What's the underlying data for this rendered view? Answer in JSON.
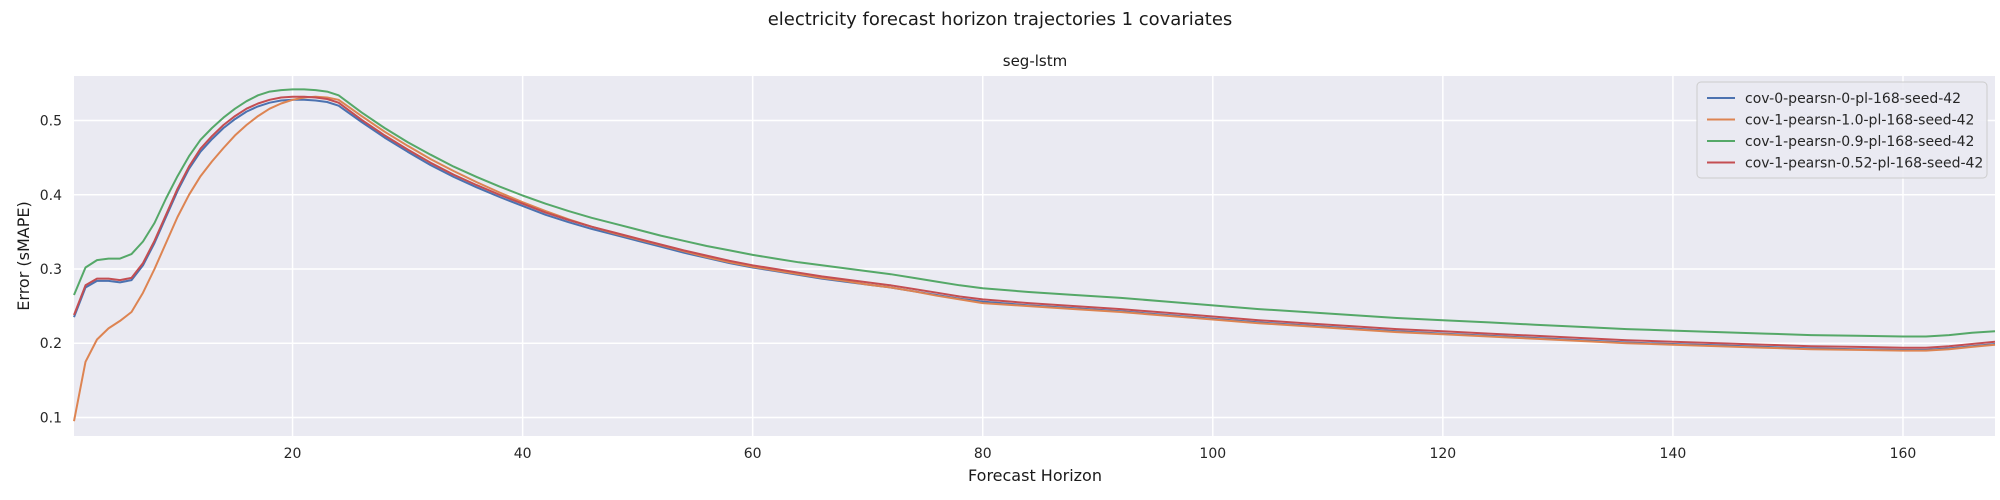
{
  "chart_data": {
    "type": "line",
    "suptitle": "electricity forecast horizon trajectories 1 covariates",
    "title": "seg-lstm",
    "xlabel": "Forecast Horizon",
    "ylabel": "Error (sMAPE)",
    "xlim": [
      1,
      168
    ],
    "ylim": [
      0.075,
      0.56
    ],
    "xticks": [
      20,
      40,
      60,
      80,
      100,
      120,
      140,
      160
    ],
    "yticks": [
      0.1,
      0.2,
      0.3,
      0.4,
      0.5
    ],
    "grid": true,
    "legend_position": "top-right",
    "x": [
      1,
      2,
      3,
      4,
      5,
      6,
      7,
      8,
      9,
      10,
      11,
      12,
      13,
      14,
      15,
      16,
      17,
      18,
      19,
      20,
      21,
      22,
      23,
      24,
      26,
      28,
      30,
      32,
      34,
      36,
      38,
      40,
      42,
      44,
      46,
      48,
      50,
      52,
      54,
      56,
      58,
      60,
      62,
      64,
      66,
      68,
      70,
      72,
      74,
      76,
      78,
      80,
      84,
      88,
      92,
      96,
      100,
      104,
      108,
      112,
      116,
      120,
      124,
      128,
      132,
      136,
      140,
      144,
      148,
      152,
      156,
      160,
      162,
      164,
      166,
      168
    ],
    "series": [
      {
        "name": "cov-0-pearsn-0-pl-168-seed-42",
        "color": "#4c72b0",
        "values": [
          0.235,
          0.275,
          0.284,
          0.284,
          0.282,
          0.285,
          0.305,
          0.335,
          0.37,
          0.405,
          0.435,
          0.458,
          0.475,
          0.49,
          0.502,
          0.512,
          0.519,
          0.524,
          0.527,
          0.528,
          0.528,
          0.527,
          0.525,
          0.52,
          0.498,
          0.477,
          0.458,
          0.44,
          0.424,
          0.41,
          0.397,
          0.385,
          0.373,
          0.363,
          0.354,
          0.346,
          0.338,
          0.33,
          0.322,
          0.315,
          0.308,
          0.302,
          0.297,
          0.292,
          0.287,
          0.283,
          0.279,
          0.275,
          0.27,
          0.265,
          0.26,
          0.256,
          0.251,
          0.247,
          0.243,
          0.238,
          0.233,
          0.228,
          0.224,
          0.22,
          0.216,
          0.213,
          0.21,
          0.207,
          0.204,
          0.201,
          0.199,
          0.197,
          0.195,
          0.193,
          0.192,
          0.191,
          0.191,
          0.193,
          0.196,
          0.199
        ]
      },
      {
        "name": "cov-1-pearsn-1.0-pl-168-seed-42",
        "color": "#dd8452",
        "values": [
          0.095,
          0.175,
          0.205,
          0.22,
          0.23,
          0.242,
          0.268,
          0.3,
          0.335,
          0.37,
          0.4,
          0.425,
          0.445,
          0.463,
          0.48,
          0.494,
          0.506,
          0.516,
          0.523,
          0.528,
          0.531,
          0.532,
          0.531,
          0.528,
          0.506,
          0.485,
          0.466,
          0.448,
          0.432,
          0.417,
          0.403,
          0.39,
          0.378,
          0.367,
          0.357,
          0.348,
          0.34,
          0.332,
          0.324,
          0.316,
          0.309,
          0.303,
          0.298,
          0.293,
          0.288,
          0.284,
          0.279,
          0.275,
          0.27,
          0.264,
          0.259,
          0.254,
          0.25,
          0.246,
          0.242,
          0.237,
          0.232,
          0.227,
          0.223,
          0.219,
          0.215,
          0.212,
          0.209,
          0.206,
          0.203,
          0.2,
          0.198,
          0.196,
          0.194,
          0.192,
          0.191,
          0.19,
          0.19,
          0.192,
          0.195,
          0.198
        ]
      },
      {
        "name": "cov-1-pearsn-0.9-pl-168-seed-42",
        "color": "#55a868",
        "values": [
          0.265,
          0.302,
          0.312,
          0.314,
          0.314,
          0.32,
          0.337,
          0.362,
          0.395,
          0.425,
          0.452,
          0.474,
          0.49,
          0.504,
          0.516,
          0.526,
          0.534,
          0.539,
          0.541,
          0.542,
          0.542,
          0.541,
          0.539,
          0.534,
          0.511,
          0.49,
          0.471,
          0.454,
          0.438,
          0.424,
          0.411,
          0.399,
          0.388,
          0.378,
          0.369,
          0.361,
          0.353,
          0.345,
          0.338,
          0.331,
          0.325,
          0.319,
          0.314,
          0.309,
          0.305,
          0.301,
          0.297,
          0.293,
          0.288,
          0.283,
          0.278,
          0.274,
          0.269,
          0.265,
          0.261,
          0.256,
          0.251,
          0.246,
          0.242,
          0.238,
          0.234,
          0.231,
          0.228,
          0.225,
          0.222,
          0.219,
          0.217,
          0.215,
          0.213,
          0.211,
          0.21,
          0.209,
          0.209,
          0.211,
          0.214,
          0.216
        ]
      },
      {
        "name": "cov-1-pearsn-0.52-pl-168-seed-42",
        "color": "#c44e52",
        "values": [
          0.238,
          0.278,
          0.287,
          0.287,
          0.285,
          0.288,
          0.308,
          0.338,
          0.373,
          0.408,
          0.438,
          0.462,
          0.479,
          0.494,
          0.506,
          0.516,
          0.523,
          0.528,
          0.531,
          0.532,
          0.532,
          0.531,
          0.529,
          0.524,
          0.501,
          0.48,
          0.461,
          0.443,
          0.427,
          0.413,
          0.4,
          0.388,
          0.376,
          0.366,
          0.357,
          0.349,
          0.341,
          0.333,
          0.325,
          0.318,
          0.311,
          0.305,
          0.3,
          0.295,
          0.29,
          0.286,
          0.282,
          0.278,
          0.273,
          0.268,
          0.263,
          0.259,
          0.254,
          0.25,
          0.246,
          0.241,
          0.236,
          0.231,
          0.227,
          0.223,
          0.219,
          0.216,
          0.213,
          0.21,
          0.207,
          0.204,
          0.202,
          0.2,
          0.198,
          0.196,
          0.195,
          0.194,
          0.194,
          0.196,
          0.199,
          0.202
        ]
      }
    ]
  }
}
